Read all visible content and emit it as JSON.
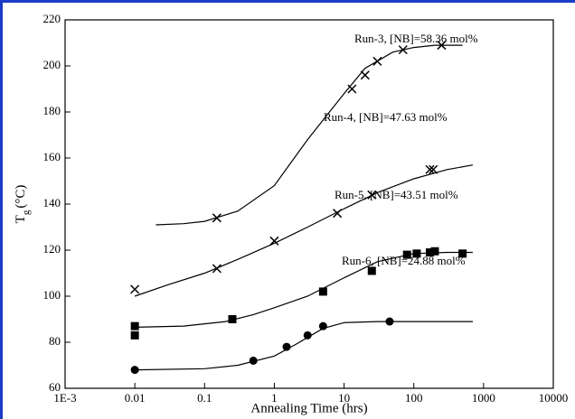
{
  "chart_data": {
    "type": "scatter",
    "x_label": "Annealing Time (hrs)",
    "y_label_main": "T",
    "y_label_sub": "g",
    "y_label_unit": "(°C)",
    "log_x": true,
    "xlim": [
      0.001,
      10000
    ],
    "xticks": [
      {
        "value": 0.001,
        "label": "1E-3"
      },
      0.01,
      0.1,
      1,
      10,
      100,
      1000,
      10000
    ],
    "ylim": [
      60,
      220
    ],
    "yticks": [
      60,
      80,
      100,
      120,
      140,
      160,
      180,
      200,
      220
    ],
    "series": [
      {
        "name": "Run-3, [NB]=58.36 mol%",
        "color": "#000000",
        "marker": "x",
        "x": [
          0.15,
          13,
          20,
          30,
          70,
          250
        ],
        "values": [
          134,
          190,
          196,
          202,
          207,
          209
        ],
        "fit": {
          "x": [
            0.02,
            0.05,
            0.1,
            0.3,
            1,
            3,
            10,
            20,
            50,
            100,
            200,
            500
          ],
          "values": [
            131,
            131.5,
            132.5,
            137,
            148,
            168,
            188,
            199,
            206,
            208,
            209,
            209
          ]
        }
      },
      {
        "name": "Run-4, [NB]=47.63 mol%",
        "color": "#000000",
        "marker": "x",
        "x": [
          0.01,
          0.15,
          1,
          8,
          25,
          170,
          190
        ],
        "values": [
          103,
          112,
          124,
          136,
          144,
          155,
          155
        ],
        "fit": {
          "x": [
            0.01,
            0.03,
            0.1,
            0.3,
            1,
            3,
            10,
            30,
            100,
            300,
            700
          ],
          "values": [
            100,
            105,
            110,
            116,
            123,
            130,
            138,
            145,
            151,
            155,
            157
          ]
        }
      },
      {
        "name": "Run-5, [NB]=43.51 mol%",
        "color": "#000000",
        "marker": "square",
        "x": [
          0.01,
          0.01,
          0.25,
          5,
          25,
          80,
          110,
          170,
          200,
          500
        ],
        "values": [
          83,
          87,
          90,
          102,
          111,
          118,
          118.5,
          119,
          119.5,
          118.5
        ],
        "fit": {
          "x": [
            0.01,
            0.05,
            0.2,
            0.5,
            1,
            3,
            10,
            30,
            100,
            300,
            700
          ],
          "values": [
            86.5,
            87,
            89,
            92,
            95,
            100,
            108,
            115,
            118.5,
            119,
            119
          ]
        }
      },
      {
        "name": "Run-6, [NB]=24.88 mol%",
        "color": "#000000",
        "marker": "circle",
        "x": [
          0.01,
          0.5,
          1.5,
          3,
          5,
          45
        ],
        "values": [
          68,
          72,
          78,
          83,
          87,
          89
        ],
        "fit": {
          "x": [
            0.01,
            0.1,
            0.3,
            1,
            2,
            5,
            10,
            30,
            100,
            700
          ],
          "values": [
            68,
            68.5,
            70,
            74,
            79,
            86,
            88.5,
            89,
            89,
            89
          ]
        }
      }
    ]
  }
}
